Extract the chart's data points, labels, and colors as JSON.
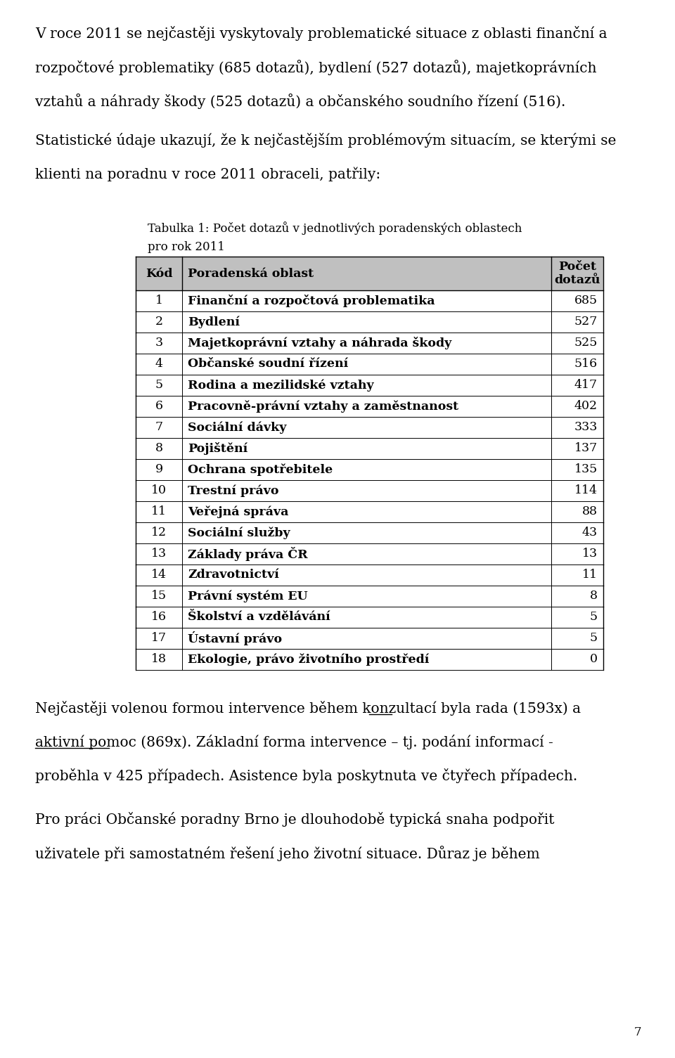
{
  "bg_color": "#ffffff",
  "text_color": "#000000",
  "intro_lines": [
    "V roce 2011 se nejčastěji vyskytovaly problematické situace z oblasti finanční a",
    "rozpočtové problematiky (685 dotazů), bydlení (527 dotazů), majetkoprávních",
    "vztahů a náhrady škody (525 dotazů) a občanského soudního řízení (516)."
  ],
  "stat_lines": [
    "Statistické údaje ukazují, že k nejčastějším problémovým situacím, se kterými se",
    "klienti na poradnu v roce 2011 obraceli, patřily:"
  ],
  "table_caption_line1": "Tabulka 1: Počet dotazů v jednotlivých poradenských oblastech",
  "table_caption_line2": "pro rok 2011",
  "col_header_kod": "Kód",
  "col_header_oblast": "Poradenská oblast",
  "col_header_pocet": "Počet\ndotazů",
  "table_rows": [
    [
      1,
      "Finanční a rozpočtová problematika",
      685
    ],
    [
      2,
      "Bydlení",
      527
    ],
    [
      3,
      "Majetkoprávní vztahy a náhrada škody",
      525
    ],
    [
      4,
      "Občanské soudní řízení",
      516
    ],
    [
      5,
      "Rodina a mezilidské vztahy",
      417
    ],
    [
      6,
      "Pracovně-právní vztahy a zaměstnanost",
      402
    ],
    [
      7,
      "Sociální dávky",
      333
    ],
    [
      8,
      "Pojištění",
      137
    ],
    [
      9,
      "Ochrana spotřebitele",
      135
    ],
    [
      10,
      "Trestní právo",
      114
    ],
    [
      11,
      "Veřejná správa",
      88
    ],
    [
      12,
      "Sociální služby",
      43
    ],
    [
      13,
      "Základy práva ČR",
      13
    ],
    [
      14,
      "Zdravotnictví",
      11
    ],
    [
      15,
      "Právní systém EU",
      8
    ],
    [
      16,
      "Školství a vzdělávání",
      5
    ],
    [
      17,
      "Ústavní právo",
      5
    ],
    [
      18,
      "Ekologie, právo životního prostředí",
      0
    ]
  ],
  "para3_lines": [
    "Nejčastěji volenou formou intervence během konzultací byla rada (1593x) a",
    "aktivní pomoc (869x). Základní forma intervence – tj. podání informací -",
    "proběhla v 425 případech. Asistence byla poskytnuta ve čtyřech případech."
  ],
  "para4_lines": [
    "Pro práci Občanské poradny Brno je dlouhodobě typická snaha podpořit",
    "uživatele při samostatném řešení jeho životní situace. Důraz je během"
  ],
  "page_number": "7",
  "header_bg": "#c0c0c0",
  "font_size_body": 14.5,
  "font_size_table": 12.5,
  "font_size_caption": 12.0
}
